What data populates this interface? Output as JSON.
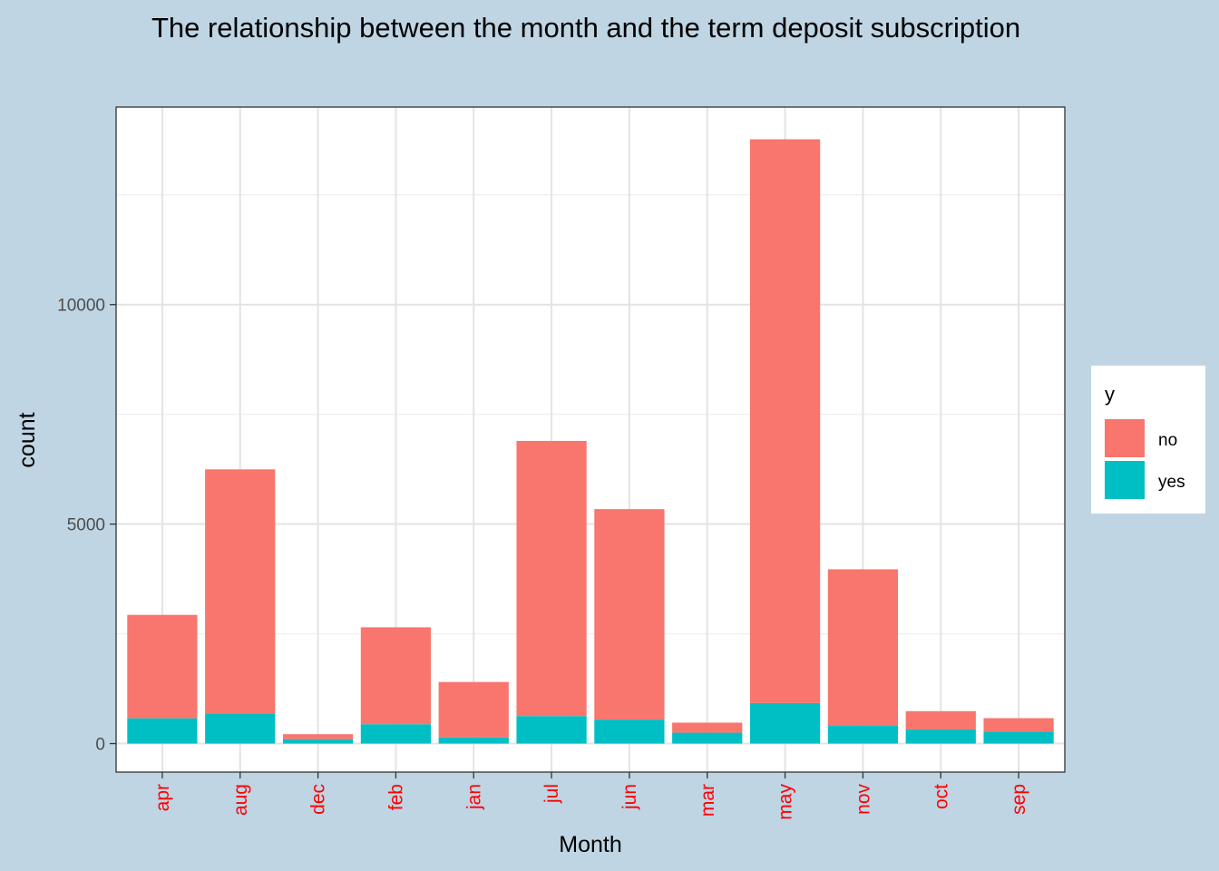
{
  "chart_data": {
    "type": "bar",
    "stacked": true,
    "title": "The relationship between the month and the term deposit subscription",
    "xlabel": "Month",
    "ylabel": "count",
    "categories": [
      "apr",
      "aug",
      "dec",
      "feb",
      "jan",
      "jul",
      "jun",
      "mar",
      "may",
      "nov",
      "oct",
      "sep"
    ],
    "series": [
      {
        "name": "yes",
        "color": "#00bfc4",
        "values": [
          577,
          688,
          100,
          441,
          142,
          627,
          546,
          248,
          925,
          403,
          323,
          269
        ]
      },
      {
        "name": "no",
        "color": "#f8766d",
        "values": [
          2355,
          5559,
          114,
          2208,
          1261,
          6268,
          4795,
          229,
          12841,
          3567,
          415,
          310
        ]
      }
    ],
    "ylim": [
      -650,
      14500
    ],
    "yticks": [
      0,
      5000,
      10000
    ],
    "ytick_labels": [
      "0",
      "5000",
      "10000"
    ],
    "grid": true,
    "legend": {
      "title": "y",
      "position": "right",
      "items": [
        "no",
        "yes"
      ]
    },
    "tick_label_color": "#ff0000",
    "background_color": "#bfd5e4"
  }
}
